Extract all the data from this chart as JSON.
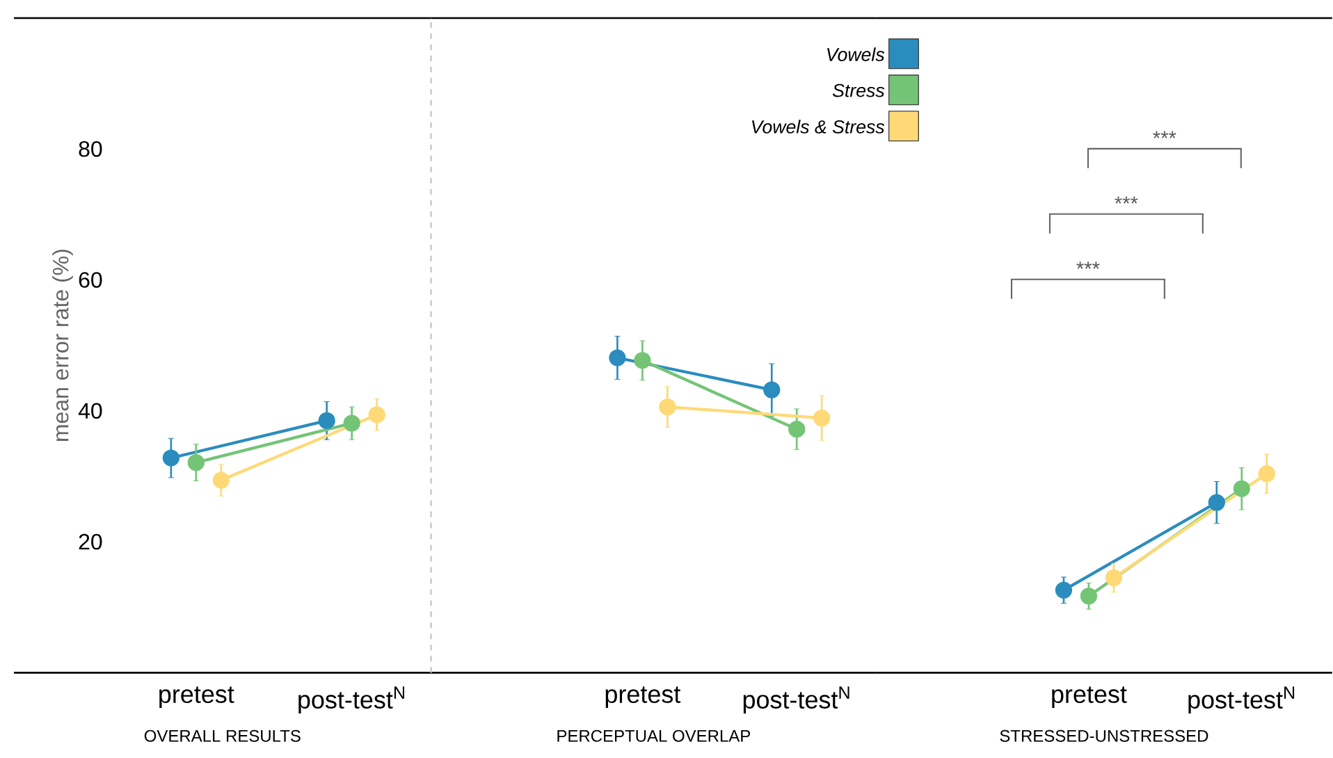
{
  "chart_data": [
    {
      "type": "line",
      "xlabel": "OVERALL RESULTS",
      "ylabel": "mean error rate (%)",
      "categories": [
        "pretest",
        "post-test$^{N}$"
      ],
      "ylim": [
        0,
        100
      ],
      "yticks": [
        20,
        40,
        60,
        80
      ],
      "marker": "circle",
      "series": [
        {
          "color": "#2b8cbe",
          "values": [
            32.8,
            38.5
          ],
          "errors": [
            3.0,
            2.9
          ]
        },
        {
          "color": "#74c476",
          "values": [
            32.1,
            38.1
          ],
          "errors": [
            2.8,
            2.5
          ]
        },
        {
          "color": "#fed976",
          "values": [
            29.4,
            39.4
          ],
          "errors": [
            2.4,
            2.4
          ]
        }
      ]
    },
    {
      "type": "line",
      "xlabel": "PERCEPTUAL OVERLAP",
      "categories": [
        "pretest",
        "post-test$^{N}$"
      ],
      "ylim": [
        0,
        100
      ],
      "yticks": [
        20,
        40,
        60,
        80
      ],
      "tick_labels": "x",
      "marker": "circle",
      "legend": "top",
      "series": [
        {
          "name": "Vowels",
          "color": "#2b8cbe",
          "values": [
            48.1,
            43.2
          ],
          "errors": [
            3.3,
            4.0
          ]
        },
        {
          "name": "Stress",
          "color": "#74c476",
          "values": [
            47.7,
            37.2
          ],
          "errors": [
            3.0,
            3.1
          ]
        },
        {
          "name": "Vowels & Stress",
          "color": "#fed976",
          "values": [
            40.6,
            38.9
          ],
          "errors": [
            3.1,
            3.4
          ]
        }
      ]
    },
    {
      "type": "line",
      "xlabel": "STRESSED-UNSTRESSED",
      "categories": [
        "pretest",
        "post-test$^{N}$"
      ],
      "ylim": [
        0,
        100
      ],
      "yticks": [
        20,
        40,
        60,
        80
      ],
      "tick_labels": "x",
      "marker": "circle",
      "annotations": [
        "***",
        "***",
        "***"
      ],
      "series": [
        {
          "color": "#2b8cbe",
          "values": [
            12.6,
            26.0
          ],
          "errors": [
            2.0,
            3.2
          ]
        },
        {
          "color": "#74c476",
          "values": [
            11.7,
            28.1
          ],
          "errors": [
            2.0,
            3.2
          ]
        },
        {
          "color": "#fed976",
          "values": [
            14.5,
            30.4
          ],
          "errors": [
            2.2,
            3.0
          ]
        }
      ]
    }
  ]
}
